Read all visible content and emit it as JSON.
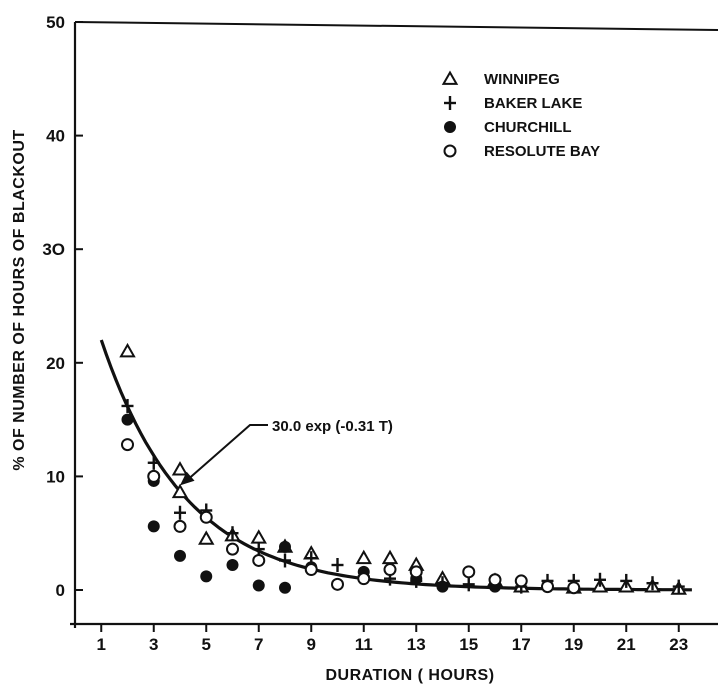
{
  "chart_data": {
    "type": "scatter",
    "title": "",
    "xlabel": "DURATION ( HOURS)",
    "ylabel": "% OF NUMBER OF HOURS OF BLACKOUT",
    "xlim": [
      0,
      24
    ],
    "ylim": [
      0,
      50
    ],
    "x_ticks": [
      "1",
      "3",
      "5",
      "7",
      "9",
      "11",
      "13",
      "15",
      "17",
      "19",
      "21",
      "23"
    ],
    "y_ticks": [
      "0",
      "10",
      "20",
      "30",
      "40",
      "50"
    ],
    "y_tick_label_30": "3O",
    "grid": false,
    "legend_position": "top-right",
    "series": [
      {
        "name": "WINNIPEG",
        "marker": "triangle",
        "points": [
          [
            2,
            21.0
          ],
          [
            4,
            10.6
          ],
          [
            4,
            8.6
          ],
          [
            5,
            4.5
          ],
          [
            6,
            4.8
          ],
          [
            7,
            4.6
          ],
          [
            8,
            3.8
          ],
          [
            9,
            3.2
          ],
          [
            11,
            2.8
          ],
          [
            12,
            2.8
          ],
          [
            13,
            2.2
          ],
          [
            14,
            1.0
          ],
          [
            16,
            0.8
          ],
          [
            17,
            0.3
          ],
          [
            19,
            0.2
          ],
          [
            20,
            0.3
          ],
          [
            21,
            0.3
          ],
          [
            22,
            0.3
          ],
          [
            23,
            0.1
          ]
        ]
      },
      {
        "name": "BAKER LAKE",
        "marker": "plus",
        "points": [
          [
            2,
            16.2
          ],
          [
            3,
            11.2
          ],
          [
            4,
            6.8
          ],
          [
            5,
            7.0
          ],
          [
            6,
            5.0
          ],
          [
            7,
            3.6
          ],
          [
            8,
            2.6
          ],
          [
            9,
            2.8
          ],
          [
            10,
            2.2
          ],
          [
            11,
            1.2
          ],
          [
            12,
            1.0
          ],
          [
            13,
            0.8
          ],
          [
            14,
            0.6
          ],
          [
            15,
            0.5
          ],
          [
            16,
            0.4
          ],
          [
            17,
            0.3
          ],
          [
            18,
            0.8
          ],
          [
            19,
            0.8
          ],
          [
            20,
            0.9
          ],
          [
            21,
            0.8
          ],
          [
            22,
            0.6
          ],
          [
            23,
            0.3
          ]
        ]
      },
      {
        "name": "CHURCHILL",
        "marker": "filled-circle",
        "points": [
          [
            2,
            15.0
          ],
          [
            3,
            9.6
          ],
          [
            3,
            5.6
          ],
          [
            4,
            3.0
          ],
          [
            5,
            1.2
          ],
          [
            6,
            2.2
          ],
          [
            7,
            0.4
          ],
          [
            8,
            3.8
          ],
          [
            8,
            0.2
          ],
          [
            9,
            2.0
          ],
          [
            11,
            1.6
          ],
          [
            13,
            1.0
          ],
          [
            14,
            0.3
          ],
          [
            16,
            0.3
          ],
          [
            18,
            0.4
          ]
        ]
      },
      {
        "name": "RESOLUTE BAY",
        "marker": "open-circle",
        "points": [
          [
            2,
            12.8
          ],
          [
            3,
            10.0
          ],
          [
            4,
            5.6
          ],
          [
            5,
            6.4
          ],
          [
            6,
            3.6
          ],
          [
            7,
            2.6
          ],
          [
            9,
            1.8
          ],
          [
            10,
            0.5
          ],
          [
            11,
            1.0
          ],
          [
            12,
            1.8
          ],
          [
            13,
            1.6
          ],
          [
            15,
            1.6
          ],
          [
            16,
            0.9
          ],
          [
            17,
            0.8
          ],
          [
            18,
            0.3
          ],
          [
            19,
            0.2
          ]
        ]
      }
    ],
    "fit": {
      "label": "30.0 exp (-0.31 T)",
      "a": 30.0,
      "b": 0.31,
      "x_range": [
        1,
        23.5
      ]
    }
  }
}
